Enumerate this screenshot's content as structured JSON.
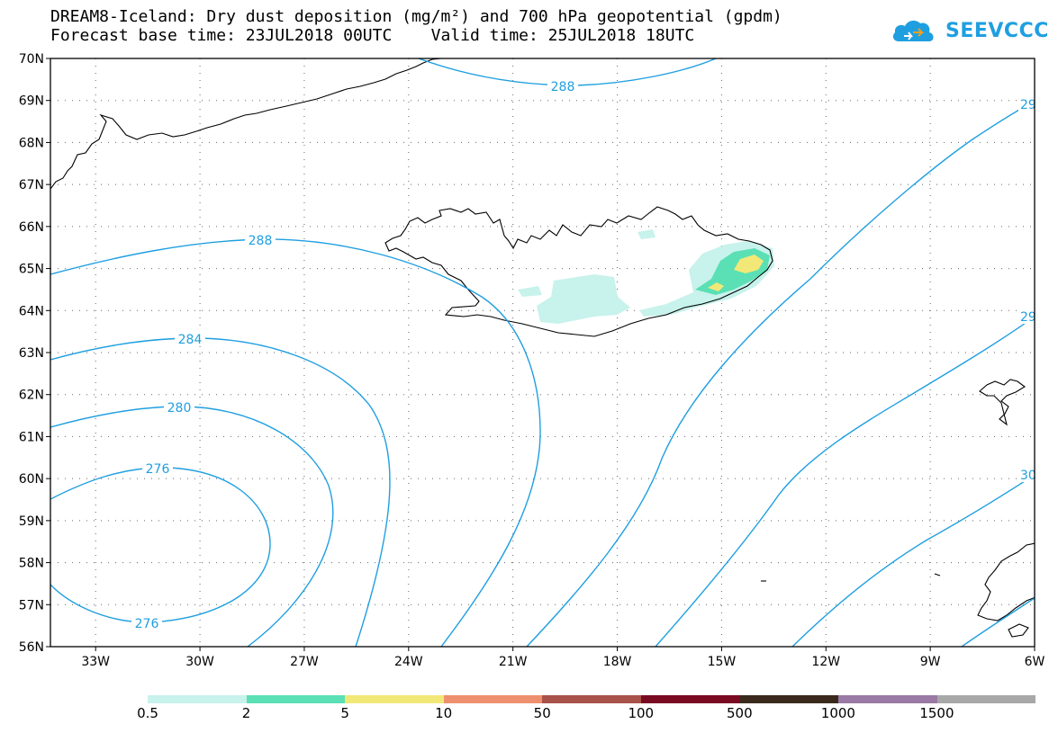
{
  "header": {
    "title": "DREAM8-Iceland: Dry dust deposition (mg/m²) and 700 hPa geopotential (gpdm)",
    "subtitle": "Forecast base time: 23JUL2018 00UTC    Valid time: 25JUL2018 18UTC"
  },
  "logo": {
    "text": "SEEVCCC",
    "icon": "cloud-logo-icon",
    "color": "#1f9fe0"
  },
  "map": {
    "lon_range": [
      -34.3,
      -6
    ],
    "lat_range": [
      56,
      70
    ],
    "lon_ticks": [
      "33W",
      "30W",
      "27W",
      "24W",
      "21W",
      "18W",
      "15W",
      "12W",
      "9W",
      "6W"
    ],
    "lat_ticks": [
      "70N",
      "69N",
      "68N",
      "67N",
      "66N",
      "65N",
      "64N",
      "63N",
      "62N",
      "61N",
      "60N",
      "59N",
      "58N",
      "57N",
      "56N"
    ],
    "grid": "dotted",
    "contour_color": "#1f9fe0",
    "contour_labels": [
      {
        "text": "288"
      },
      {
        "text": "288"
      },
      {
        "text": "284"
      },
      {
        "text": "280"
      },
      {
        "text": "276"
      },
      {
        "text": "276"
      },
      {
        "text": "29"
      },
      {
        "text": "29"
      },
      {
        "text": "30"
      }
    ]
  },
  "legend": {
    "colors": [
      "#c8f2ec",
      "#5ae0b4",
      "#f2e878",
      "#ee9070",
      "#a8524a",
      "#7a0a22",
      "#3b2a1c",
      "#9a7aa4",
      "#a8a8a8"
    ],
    "labels": [
      "0.5",
      "2",
      "5",
      "10",
      "50",
      "100",
      "500",
      "1000",
      "1500"
    ]
  }
}
